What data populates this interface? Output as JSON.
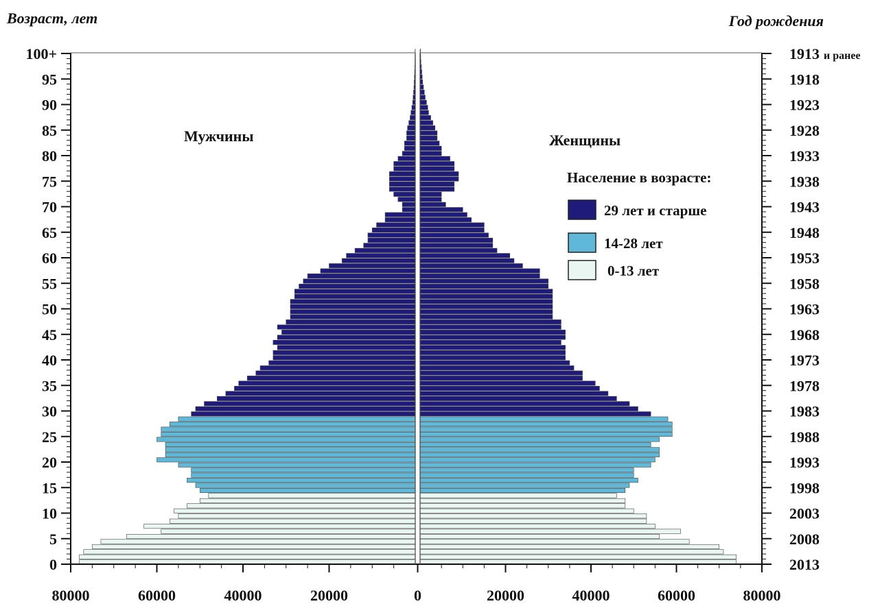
{
  "chart_data": {
    "type": "bar",
    "subtype": "population-pyramid",
    "left_axis_label": "Возраст, лет",
    "right_axis_label": "Год рождения",
    "male_label": "Мужчины",
    "female_label": "Женщины",
    "ages": [
      0,
      1,
      2,
      3,
      4,
      5,
      6,
      7,
      8,
      9,
      10,
      11,
      12,
      13,
      14,
      15,
      16,
      17,
      18,
      19,
      20,
      21,
      22,
      23,
      24,
      25,
      26,
      27,
      28,
      29,
      30,
      31,
      32,
      33,
      34,
      35,
      36,
      37,
      38,
      39,
      40,
      41,
      42,
      43,
      44,
      45,
      46,
      47,
      48,
      49,
      50,
      51,
      52,
      53,
      54,
      55,
      56,
      57,
      58,
      59,
      60,
      61,
      62,
      63,
      64,
      65,
      66,
      67,
      68,
      69,
      70,
      71,
      72,
      73,
      74,
      75,
      76,
      77,
      78,
      79,
      80,
      81,
      82,
      83,
      84,
      85,
      86,
      87,
      88,
      89,
      90,
      91,
      92,
      93,
      94,
      95,
      96,
      97,
      98,
      99,
      100
    ],
    "male": [
      78000,
      78000,
      77000,
      75000,
      73000,
      67000,
      59000,
      63000,
      57000,
      55000,
      56000,
      53000,
      50000,
      48000,
      50000,
      51000,
      53000,
      52000,
      52000,
      55000,
      60000,
      58000,
      58000,
      58000,
      60000,
      59000,
      59000,
      57000,
      55000,
      52000,
      51000,
      49000,
      46000,
      44000,
      42000,
      41000,
      39000,
      37000,
      36000,
      34000,
      33000,
      33000,
      32000,
      33000,
      32000,
      31000,
      32000,
      30000,
      29000,
      29000,
      29000,
      29000,
      28000,
      28000,
      27000,
      26000,
      25000,
      22000,
      20000,
      17000,
      16000,
      14000,
      12000,
      11000,
      11000,
      10000,
      9000,
      7000,
      7000,
      3000,
      3000,
      4000,
      5000,
      6000,
      6000,
      6000,
      6000,
      5000,
      5000,
      4000,
      3000,
      2500,
      2500,
      2000,
      2000,
      1800,
      1500,
      1200,
      1000,
      800,
      600,
      500,
      400,
      300,
      250,
      200,
      150,
      100,
      80,
      60,
      50
    ],
    "female": [
      74000,
      74000,
      71000,
      70000,
      63000,
      56000,
      61000,
      55000,
      53000,
      53000,
      50000,
      48000,
      48000,
      46000,
      48000,
      49000,
      51000,
      50000,
      50000,
      54000,
      55000,
      56000,
      56000,
      54000,
      56000,
      59000,
      59000,
      59000,
      58000,
      54000,
      51000,
      49000,
      46000,
      44000,
      42000,
      41000,
      38000,
      38000,
      36000,
      35000,
      34000,
      34000,
      34000,
      33000,
      34000,
      34000,
      33000,
      33000,
      31000,
      31000,
      31000,
      31000,
      31000,
      31000,
      30000,
      30000,
      28000,
      28000,
      24000,
      22000,
      21000,
      18000,
      17000,
      17000,
      16000,
      15000,
      15000,
      12000,
      11000,
      10000,
      6000,
      5000,
      5000,
      8000,
      8000,
      9000,
      9000,
      8000,
      8000,
      7000,
      5000,
      5000,
      4500,
      4000,
      4000,
      3500,
      3000,
      2500,
      2000,
      1800,
      1500,
      1200,
      1000,
      800,
      600,
      500,
      400,
      300,
      200,
      150,
      100
    ],
    "groups": [
      {
        "name": "29 лет и старше",
        "color": "#1e1b7a",
        "min_age": 29,
        "max_age": 100
      },
      {
        "name": "14-28 лет",
        "color": "#5fb8d8",
        "min_age": 14,
        "max_age": 28
      },
      {
        "name": "0-13 лет",
        "color": "#e9f6f2",
        "min_age": 0,
        "max_age": 13
      }
    ],
    "legend_title": "Население в возрасте:",
    "legend_order": [
      0,
      1,
      2
    ],
    "bar_outline_color": "#444444",
    "age_ticks": [
      {
        "age": 0,
        "label": "0"
      },
      {
        "age": 5,
        "label": "5"
      },
      {
        "age": 10,
        "label": "10"
      },
      {
        "age": 15,
        "label": "15"
      },
      {
        "age": 20,
        "label": "20"
      },
      {
        "age": 25,
        "label": "25"
      },
      {
        "age": 30,
        "label": "30"
      },
      {
        "age": 35,
        "label": "35"
      },
      {
        "age": 40,
        "label": "40"
      },
      {
        "age": 45,
        "label": "45"
      },
      {
        "age": 50,
        "label": "50"
      },
      {
        "age": 55,
        "label": "55"
      },
      {
        "age": 60,
        "label": "60"
      },
      {
        "age": 65,
        "label": "65"
      },
      {
        "age": 70,
        "label": "70"
      },
      {
        "age": 75,
        "label": "75"
      },
      {
        "age": 80,
        "label": "80"
      },
      {
        "age": 85,
        "label": "85"
      },
      {
        "age": 90,
        "label": "90"
      },
      {
        "age": 95,
        "label": "95"
      },
      {
        "age": 100,
        "label": "100+"
      }
    ],
    "year_ticks": [
      {
        "age": 0,
        "label": "2013"
      },
      {
        "age": 5,
        "label": "2008"
      },
      {
        "age": 10,
        "label": "2003"
      },
      {
        "age": 15,
        "label": "1998"
      },
      {
        "age": 20,
        "label": "1993"
      },
      {
        "age": 25,
        "label": "1988"
      },
      {
        "age": 30,
        "label": "1983"
      },
      {
        "age": 35,
        "label": "1978"
      },
      {
        "age": 40,
        "label": "1973"
      },
      {
        "age": 45,
        "label": "1968"
      },
      {
        "age": 50,
        "label": "1963"
      },
      {
        "age": 55,
        "label": "1958"
      },
      {
        "age": 60,
        "label": "1953"
      },
      {
        "age": 65,
        "label": "1948"
      },
      {
        "age": 70,
        "label": "1943"
      },
      {
        "age": 75,
        "label": "1938"
      },
      {
        "age": 80,
        "label": "1933"
      },
      {
        "age": 85,
        "label": "1928"
      },
      {
        "age": 90,
        "label": "1923"
      },
      {
        "age": 95,
        "label": "1918"
      },
      {
        "age": 100,
        "label": "1913",
        "suffix": "и ранее"
      }
    ],
    "x_ticks": [
      {
        "value": -80000,
        "label": "80000"
      },
      {
        "value": -60000,
        "label": "60000"
      },
      {
        "value": -40000,
        "label": "40000"
      },
      {
        "value": -20000,
        "label": "20000"
      },
      {
        "value": 0,
        "label": "0"
      },
      {
        "value": 20000,
        "label": "20000"
      },
      {
        "value": 40000,
        "label": "40000"
      },
      {
        "value": 60000,
        "label": "60000"
      },
      {
        "value": 80000,
        "label": "80000"
      }
    ],
    "xlim": [
      -80000,
      80000
    ],
    "ylim": [
      0,
      100
    ]
  }
}
